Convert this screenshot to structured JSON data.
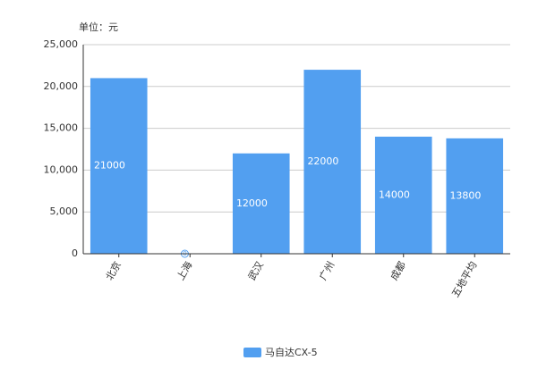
{
  "chart_data": {
    "type": "bar",
    "unit_label": "单位：元",
    "categories": [
      "北京",
      "上海",
      "武汉",
      "广州",
      "成都",
      "五地平均"
    ],
    "series": [
      {
        "name": "马自达CX-5",
        "color": "#529ff0",
        "values": [
          21000,
          0,
          12000,
          22000,
          14000,
          13800
        ]
      }
    ],
    "ylim": [
      0,
      25000
    ],
    "yticks": [
      0,
      {
        "value": 5000,
        "label": "5,000"
      },
      {
        "value": 10000,
        "label": "10,000"
      },
      {
        "value": 15000,
        "label": "15,000"
      },
      {
        "value": 20000,
        "label": "20,000"
      },
      {
        "value": 25000,
        "label": "25,000"
      }
    ],
    "grid": true,
    "legend": "bottom"
  }
}
